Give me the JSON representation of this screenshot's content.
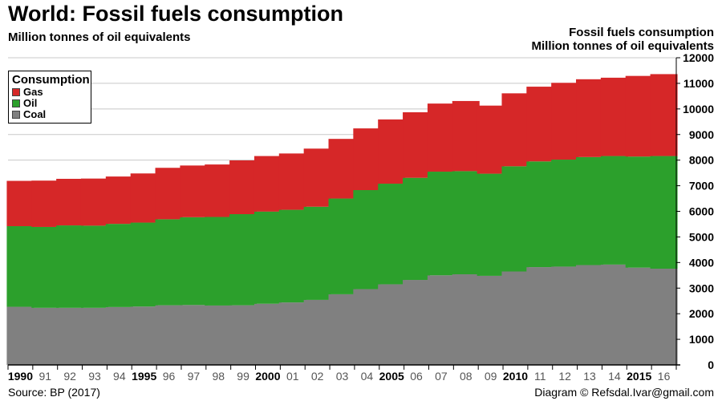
{
  "title": "World: Fossil fuels consumption",
  "subtitle": "Million tonnes of oil equivalents",
  "right_axis_title": [
    "Fossil fuels consumption",
    "Million tonnes of oil equivalents"
  ],
  "source": "Source: BP (2017)",
  "credit": "Diagram © Refsdal.Ivar@gmail.com",
  "chart_data": {
    "type": "bar",
    "stacked": true,
    "categories": [
      "1990",
      "91",
      "92",
      "93",
      "94",
      "1995",
      "96",
      "97",
      "98",
      "99",
      "2000",
      "01",
      "02",
      "03",
      "04",
      "2005",
      "06",
      "07",
      "08",
      "09",
      "2010",
      "11",
      "12",
      "13",
      "14",
      "2015",
      "16"
    ],
    "bold_categories": [
      "1990",
      "1995",
      "2000",
      "2005",
      "2010",
      "2015"
    ],
    "legend": {
      "title": "Consumption",
      "placement": "top-left"
    },
    "series": [
      {
        "name": "Coal",
        "color": "#808080",
        "values": [
          2270,
          2230,
          2230,
          2230,
          2260,
          2280,
          2330,
          2340,
          2320,
          2330,
          2390,
          2440,
          2540,
          2760,
          2960,
          3150,
          3320,
          3500,
          3540,
          3480,
          3650,
          3820,
          3840,
          3900,
          3920,
          3800,
          3760
        ]
      },
      {
        "name": "Oil",
        "color": "#2ca02c",
        "values": [
          3150,
          3160,
          3220,
          3210,
          3250,
          3280,
          3360,
          3430,
          3460,
          3560,
          3600,
          3620,
          3640,
          3740,
          3870,
          3930,
          3990,
          4050,
          4030,
          3990,
          4110,
          4130,
          4180,
          4220,
          4240,
          4340,
          4400
        ]
      },
      {
        "name": "Gas",
        "color": "#d62728",
        "values": [
          1770,
          1810,
          1820,
          1840,
          1850,
          1920,
          2010,
          2020,
          2050,
          2100,
          2170,
          2200,
          2270,
          2330,
          2410,
          2510,
          2560,
          2660,
          2740,
          2660,
          2850,
          2920,
          3000,
          3040,
          3060,
          3150,
          3200
        ]
      }
    ],
    "y_axis": {
      "side": "right",
      "ylim": [
        0,
        12000
      ],
      "ticks": [
        0,
        1000,
        2000,
        3000,
        4000,
        5000,
        6000,
        7000,
        8000,
        9000,
        10000,
        11000,
        12000
      ]
    },
    "grid": true
  }
}
